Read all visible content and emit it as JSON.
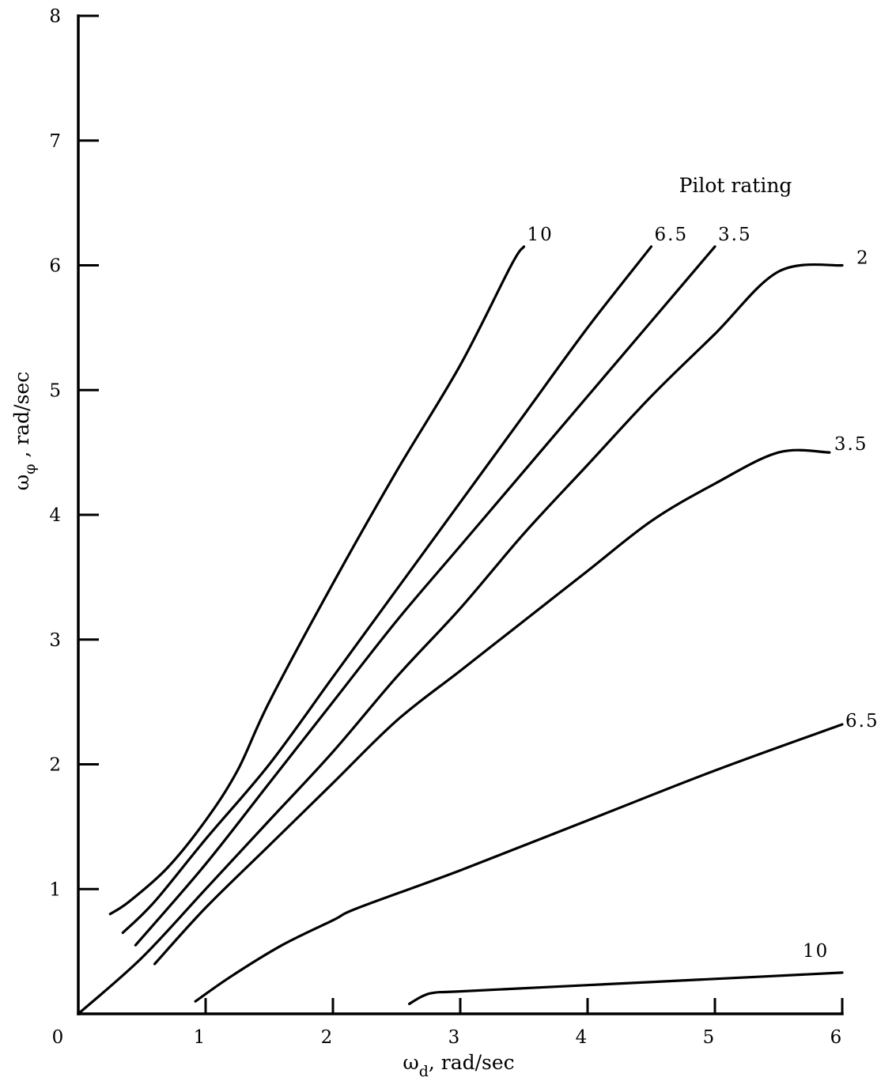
{
  "chart_data": {
    "type": "line",
    "title": "",
    "legend_title": "Pilot rating",
    "xlabel": "ω",
    "xlabel_sub": "d",
    "xlabel_unit": ", rad/sec",
    "ylabel": "ω",
    "ylabel_sub": "φ",
    "ylabel_unit": " , rad/sec",
    "xlim": [
      0,
      6
    ],
    "ylim": [
      0,
      8
    ],
    "xticks": [
      0,
      1,
      2,
      3,
      4,
      5,
      6
    ],
    "yticks": [
      1,
      2,
      3,
      4,
      5,
      6,
      7,
      8
    ],
    "grid": false,
    "series": [
      {
        "name": "10",
        "points": [
          [
            0.25,
            0.8
          ],
          [
            0.4,
            0.9
          ],
          [
            0.7,
            1.17
          ],
          [
            1.0,
            1.55
          ],
          [
            1.25,
            1.95
          ],
          [
            1.5,
            2.5
          ],
          [
            2.0,
            3.45
          ],
          [
            2.5,
            4.35
          ],
          [
            3.0,
            5.2
          ],
          [
            3.4,
            6.0
          ],
          [
            3.5,
            6.15
          ]
        ]
      },
      {
        "name": "6.5",
        "points": [
          [
            0.35,
            0.65
          ],
          [
            0.6,
            0.9
          ],
          [
            1.0,
            1.4
          ],
          [
            1.5,
            2.0
          ],
          [
            2.0,
            2.7
          ],
          [
            2.5,
            3.4
          ],
          [
            3.0,
            4.1
          ],
          [
            3.5,
            4.8
          ],
          [
            4.0,
            5.5
          ],
          [
            4.5,
            6.15
          ]
        ]
      },
      {
        "name": "3.5",
        "points": [
          [
            0.45,
            0.55
          ],
          [
            1.0,
            1.2
          ],
          [
            1.5,
            1.85
          ],
          [
            2.0,
            2.5
          ],
          [
            2.5,
            3.15
          ],
          [
            3.0,
            3.75
          ],
          [
            3.5,
            4.35
          ],
          [
            4.0,
            4.95
          ],
          [
            4.5,
            5.55
          ],
          [
            5.0,
            6.15
          ]
        ]
      },
      {
        "name": "2",
        "points": [
          [
            0.0,
            0.0
          ],
          [
            0.5,
            0.45
          ],
          [
            1.0,
            1.0
          ],
          [
            1.5,
            1.55
          ],
          [
            2.0,
            2.1
          ],
          [
            2.5,
            2.7
          ],
          [
            3.0,
            3.25
          ],
          [
            3.5,
            3.85
          ],
          [
            4.0,
            4.4
          ],
          [
            4.5,
            4.95
          ],
          [
            5.0,
            5.45
          ],
          [
            5.5,
            5.95
          ],
          [
            6.0,
            6.0
          ]
        ]
      },
      {
        "name": "3.5",
        "points": [
          [
            0.6,
            0.4
          ],
          [
            1.0,
            0.85
          ],
          [
            1.5,
            1.35
          ],
          [
            2.0,
            1.85
          ],
          [
            2.5,
            2.35
          ],
          [
            3.0,
            2.75
          ],
          [
            3.5,
            3.15
          ],
          [
            4.0,
            3.55
          ],
          [
            4.5,
            3.95
          ],
          [
            5.0,
            4.25
          ],
          [
            5.5,
            4.5
          ],
          [
            5.9,
            4.5
          ]
        ]
      },
      {
        "name": "6.5",
        "points": [
          [
            0.92,
            0.1
          ],
          [
            1.2,
            0.3
          ],
          [
            1.6,
            0.55
          ],
          [
            2.0,
            0.75
          ],
          [
            2.2,
            0.85
          ],
          [
            3.0,
            1.15
          ],
          [
            4.0,
            1.55
          ],
          [
            5.0,
            1.95
          ],
          [
            6.0,
            2.32
          ]
        ]
      },
      {
        "name": "10",
        "points": [
          [
            2.6,
            0.08
          ],
          [
            2.7,
            0.14
          ],
          [
            2.8,
            0.17
          ],
          [
            3.0,
            0.18
          ],
          [
            4.0,
            0.23
          ],
          [
            5.0,
            0.28
          ],
          [
            6.0,
            0.33
          ]
        ]
      }
    ]
  }
}
